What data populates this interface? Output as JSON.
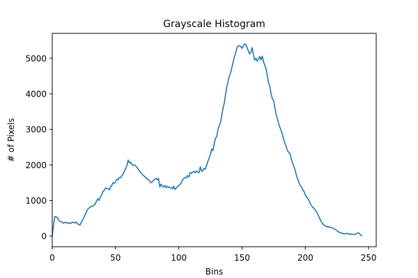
{
  "chart_data": {
    "type": "line",
    "title": "Grayscale Histogram",
    "xlabel": "Bins",
    "ylabel": "# of Pixels",
    "xlim": [
      0,
      256
    ],
    "ylim": [
      -300,
      5700
    ],
    "xticks": [
      0,
      50,
      100,
      150,
      200,
      250
    ],
    "yticks": [
      0,
      1000,
      2000,
      3000,
      4000,
      5000
    ],
    "grid": false,
    "legend": "none",
    "series": [
      {
        "color": "#1f77b4",
        "points": [
          [
            0,
            0
          ],
          [
            1,
            300
          ],
          [
            2,
            550
          ],
          [
            3,
            540
          ],
          [
            4,
            520
          ],
          [
            5,
            450
          ],
          [
            6,
            420
          ],
          [
            7,
            400
          ],
          [
            8,
            380
          ],
          [
            9,
            360
          ],
          [
            10,
            390
          ],
          [
            11,
            370
          ],
          [
            12,
            380
          ],
          [
            13,
            350
          ],
          [
            14,
            370
          ],
          [
            15,
            360
          ],
          [
            16,
            390
          ],
          [
            17,
            380
          ],
          [
            18,
            370
          ],
          [
            19,
            400
          ],
          [
            20,
            340
          ],
          [
            21,
            330
          ],
          [
            22,
            310
          ],
          [
            23,
            400
          ],
          [
            24,
            450
          ],
          [
            25,
            520
          ],
          [
            26,
            600
          ],
          [
            27,
            680
          ],
          [
            28,
            750
          ],
          [
            30,
            820
          ],
          [
            32,
            840
          ],
          [
            34,
            900
          ],
          [
            35,
            980
          ],
          [
            36,
            1050
          ],
          [
            37,
            1000
          ],
          [
            38,
            1100
          ],
          [
            39,
            1150
          ],
          [
            40,
            1250
          ],
          [
            41,
            1280
          ],
          [
            42,
            1350
          ],
          [
            44,
            1330
          ],
          [
            45,
            1300
          ],
          [
            46,
            1380
          ],
          [
            47,
            1420
          ],
          [
            48,
            1500
          ],
          [
            49,
            1480
          ],
          [
            50,
            1520
          ],
          [
            51,
            1600
          ],
          [
            52,
            1580
          ],
          [
            53,
            1650
          ],
          [
            54,
            1640
          ],
          [
            55,
            1700
          ],
          [
            56,
            1750
          ],
          [
            57,
            1820
          ],
          [
            58,
            1900
          ],
          [
            59,
            1980
          ],
          [
            60,
            2140
          ],
          [
            61,
            2060
          ],
          [
            62,
            2080
          ],
          [
            63,
            2010
          ],
          [
            64,
            1990
          ],
          [
            65,
            2000
          ],
          [
            66,
            1970
          ],
          [
            67,
            1930
          ],
          [
            68,
            1880
          ],
          [
            69,
            1820
          ],
          [
            70,
            1780
          ],
          [
            71,
            1740
          ],
          [
            72,
            1700
          ],
          [
            73,
            1680
          ],
          [
            74,
            1640
          ],
          [
            75,
            1600
          ],
          [
            76,
            1580
          ],
          [
            77,
            1560
          ],
          [
            78,
            1500
          ],
          [
            79,
            1520
          ],
          [
            80,
            1560
          ],
          [
            81,
            1600
          ],
          [
            82,
            1620
          ],
          [
            83,
            1580
          ],
          [
            84,
            1620
          ],
          [
            85,
            1380
          ],
          [
            86,
            1460
          ],
          [
            87,
            1400
          ],
          [
            88,
            1380
          ],
          [
            89,
            1420
          ],
          [
            90,
            1360
          ],
          [
            91,
            1400
          ],
          [
            92,
            1380
          ],
          [
            93,
            1350
          ],
          [
            94,
            1370
          ],
          [
            95,
            1330
          ],
          [
            96,
            1400
          ],
          [
            97,
            1310
          ],
          [
            98,
            1350
          ],
          [
            99,
            1380
          ],
          [
            100,
            1420
          ],
          [
            101,
            1450
          ],
          [
            102,
            1500
          ],
          [
            103,
            1580
          ],
          [
            104,
            1620
          ],
          [
            105,
            1650
          ],
          [
            106,
            1640
          ],
          [
            107,
            1700
          ],
          [
            108,
            1660
          ],
          [
            109,
            1790
          ],
          [
            110,
            1760
          ],
          [
            111,
            1790
          ],
          [
            112,
            1820
          ],
          [
            113,
            1780
          ],
          [
            114,
            1830
          ],
          [
            115,
            1800
          ],
          [
            116,
            1780
          ],
          [
            117,
            1950
          ],
          [
            118,
            1820
          ],
          [
            119,
            1840
          ],
          [
            120,
            1900
          ],
          [
            121,
            1880
          ],
          [
            122,
            2000
          ],
          [
            123,
            2100
          ],
          [
            124,
            2200
          ],
          [
            125,
            2300
          ],
          [
            126,
            2450
          ],
          [
            127,
            2400
          ],
          [
            128,
            2600
          ],
          [
            129,
            2750
          ],
          [
            130,
            2800
          ],
          [
            131,
            3000
          ],
          [
            132,
            3100
          ],
          [
            133,
            3200
          ],
          [
            134,
            3400
          ],
          [
            135,
            3600
          ],
          [
            136,
            3750
          ],
          [
            137,
            4000
          ],
          [
            138,
            4200
          ],
          [
            139,
            4350
          ],
          [
            140,
            4500
          ],
          [
            141,
            4600
          ],
          [
            142,
            4750
          ],
          [
            143,
            4900
          ],
          [
            144,
            5050
          ],
          [
            145,
            5150
          ],
          [
            146,
            5300
          ],
          [
            147,
            5350
          ],
          [
            148,
            5350
          ],
          [
            149,
            5320
          ],
          [
            150,
            5280
          ],
          [
            151,
            5350
          ],
          [
            152,
            5400
          ],
          [
            153,
            5380
          ],
          [
            154,
            5300
          ],
          [
            155,
            5200
          ],
          [
            156,
            5120
          ],
          [
            157,
            5180
          ],
          [
            158,
            5300
          ],
          [
            159,
            5100
          ],
          [
            160,
            4950
          ],
          [
            161,
            5000
          ],
          [
            162,
            4920
          ],
          [
            163,
            4980
          ],
          [
            164,
            5050
          ],
          [
            165,
            4950
          ],
          [
            166,
            5060
          ],
          [
            167,
            4900
          ],
          [
            168,
            4800
          ],
          [
            169,
            4700
          ],
          [
            170,
            4500
          ],
          [
            171,
            4300
          ],
          [
            172,
            4200
          ],
          [
            173,
            3980
          ],
          [
            174,
            3860
          ],
          [
            175,
            3800
          ],
          [
            176,
            3600
          ],
          [
            177,
            3400
          ],
          [
            178,
            3300
          ],
          [
            179,
            3150
          ],
          [
            180,
            3050
          ],
          [
            181,
            2950
          ],
          [
            182,
            2850
          ],
          [
            183,
            2700
          ],
          [
            184,
            2600
          ],
          [
            185,
            2500
          ],
          [
            186,
            2400
          ],
          [
            187,
            2350
          ],
          [
            188,
            2300
          ],
          [
            189,
            2150
          ],
          [
            190,
            2050
          ],
          [
            191,
            1950
          ],
          [
            192,
            1850
          ],
          [
            193,
            1700
          ],
          [
            194,
            1600
          ],
          [
            195,
            1500
          ],
          [
            196,
            1420
          ],
          [
            197,
            1380
          ],
          [
            198,
            1300
          ],
          [
            199,
            1250
          ],
          [
            200,
            1150
          ],
          [
            201,
            1100
          ],
          [
            202,
            1050
          ],
          [
            203,
            1000
          ],
          [
            204,
            900
          ],
          [
            205,
            850
          ],
          [
            206,
            800
          ],
          [
            207,
            780
          ],
          [
            208,
            720
          ],
          [
            209,
            680
          ],
          [
            210,
            600
          ],
          [
            211,
            520
          ],
          [
            212,
            450
          ],
          [
            213,
            380
          ],
          [
            214,
            330
          ],
          [
            215,
            300
          ],
          [
            216,
            280
          ],
          [
            217,
            260
          ],
          [
            218,
            270
          ],
          [
            219,
            240
          ],
          [
            220,
            250
          ],
          [
            221,
            230
          ],
          [
            222,
            220
          ],
          [
            223,
            200
          ],
          [
            224,
            180
          ],
          [
            225,
            150
          ],
          [
            226,
            130
          ],
          [
            227,
            100
          ],
          [
            228,
            90
          ],
          [
            229,
            80
          ],
          [
            230,
            70
          ],
          [
            231,
            60
          ],
          [
            232,
            60
          ],
          [
            233,
            80
          ],
          [
            234,
            60
          ],
          [
            235,
            50
          ],
          [
            236,
            60
          ],
          [
            237,
            50
          ],
          [
            238,
            40
          ],
          [
            239,
            50
          ],
          [
            240,
            60
          ],
          [
            241,
            80
          ],
          [
            242,
            90
          ],
          [
            243,
            60
          ],
          [
            244,
            20
          ],
          [
            245,
            10
          ]
        ]
      }
    ]
  }
}
